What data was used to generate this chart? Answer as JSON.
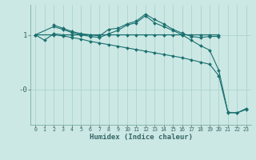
{
  "xlabel": "Humidex (Indice chaleur)",
  "bg_color": "#cce8e4",
  "line_color": "#1a7070",
  "grid_color": "#aad4cc",
  "ylim": [
    -0.65,
    1.55
  ],
  "xlim": [
    -0.5,
    23.5
  ],
  "xticks": [
    0,
    1,
    2,
    3,
    4,
    5,
    6,
    7,
    8,
    9,
    10,
    11,
    12,
    13,
    14,
    15,
    16,
    17,
    18,
    19,
    20,
    21,
    22,
    23
  ],
  "ytick_vals": [
    1.0,
    0.0
  ],
  "ytick_labels": [
    "1",
    "-0"
  ],
  "s1x": [
    0,
    1,
    2,
    3,
    4,
    5,
    6,
    7,
    8,
    9,
    10,
    11,
    12,
    13,
    14,
    15,
    16,
    17,
    18,
    19,
    20
  ],
  "s1y": [
    1.0,
    0.9,
    1.02,
    1.0,
    1.0,
    1.0,
    1.0,
    1.0,
    1.0,
    1.0,
    1.0,
    1.0,
    1.0,
    1.0,
    1.0,
    1.0,
    1.0,
    1.0,
    1.0,
    1.0,
    1.0
  ],
  "s2x": [
    2,
    3,
    4,
    5,
    6,
    7,
    8,
    9,
    10,
    11,
    12,
    13,
    14,
    15,
    16,
    17,
    18,
    19,
    20
  ],
  "s2y": [
    1.18,
    1.12,
    1.06,
    1.02,
    1.0,
    0.98,
    1.1,
    1.12,
    1.2,
    1.25,
    1.38,
    1.28,
    1.2,
    1.1,
    1.03,
    0.97,
    0.95,
    0.97,
    0.97
  ],
  "s3x": [
    0,
    2,
    3,
    4,
    5,
    6,
    7,
    8,
    9,
    10,
    11,
    12,
    13,
    14,
    15,
    16,
    17,
    18,
    19,
    20,
    21,
    22,
    23
  ],
  "s3y": [
    1.0,
    1.15,
    1.1,
    1.04,
    1.0,
    0.97,
    0.95,
    1.02,
    1.08,
    1.18,
    1.22,
    1.35,
    1.22,
    1.15,
    1.08,
    1.0,
    0.9,
    0.8,
    0.72,
    0.35,
    -0.42,
    -0.43,
    -0.35
  ],
  "s4x": [
    0,
    2,
    3,
    4,
    5,
    6,
    7,
    8,
    9,
    10,
    11,
    12,
    13,
    14,
    15,
    16,
    17,
    18,
    19,
    20,
    21,
    22,
    23
  ],
  "s4y": [
    1.0,
    1.0,
    0.98,
    0.95,
    0.92,
    0.88,
    0.85,
    0.82,
    0.79,
    0.76,
    0.73,
    0.7,
    0.67,
    0.64,
    0.61,
    0.58,
    0.54,
    0.5,
    0.46,
    0.25,
    -0.43,
    -0.43,
    -0.37
  ]
}
